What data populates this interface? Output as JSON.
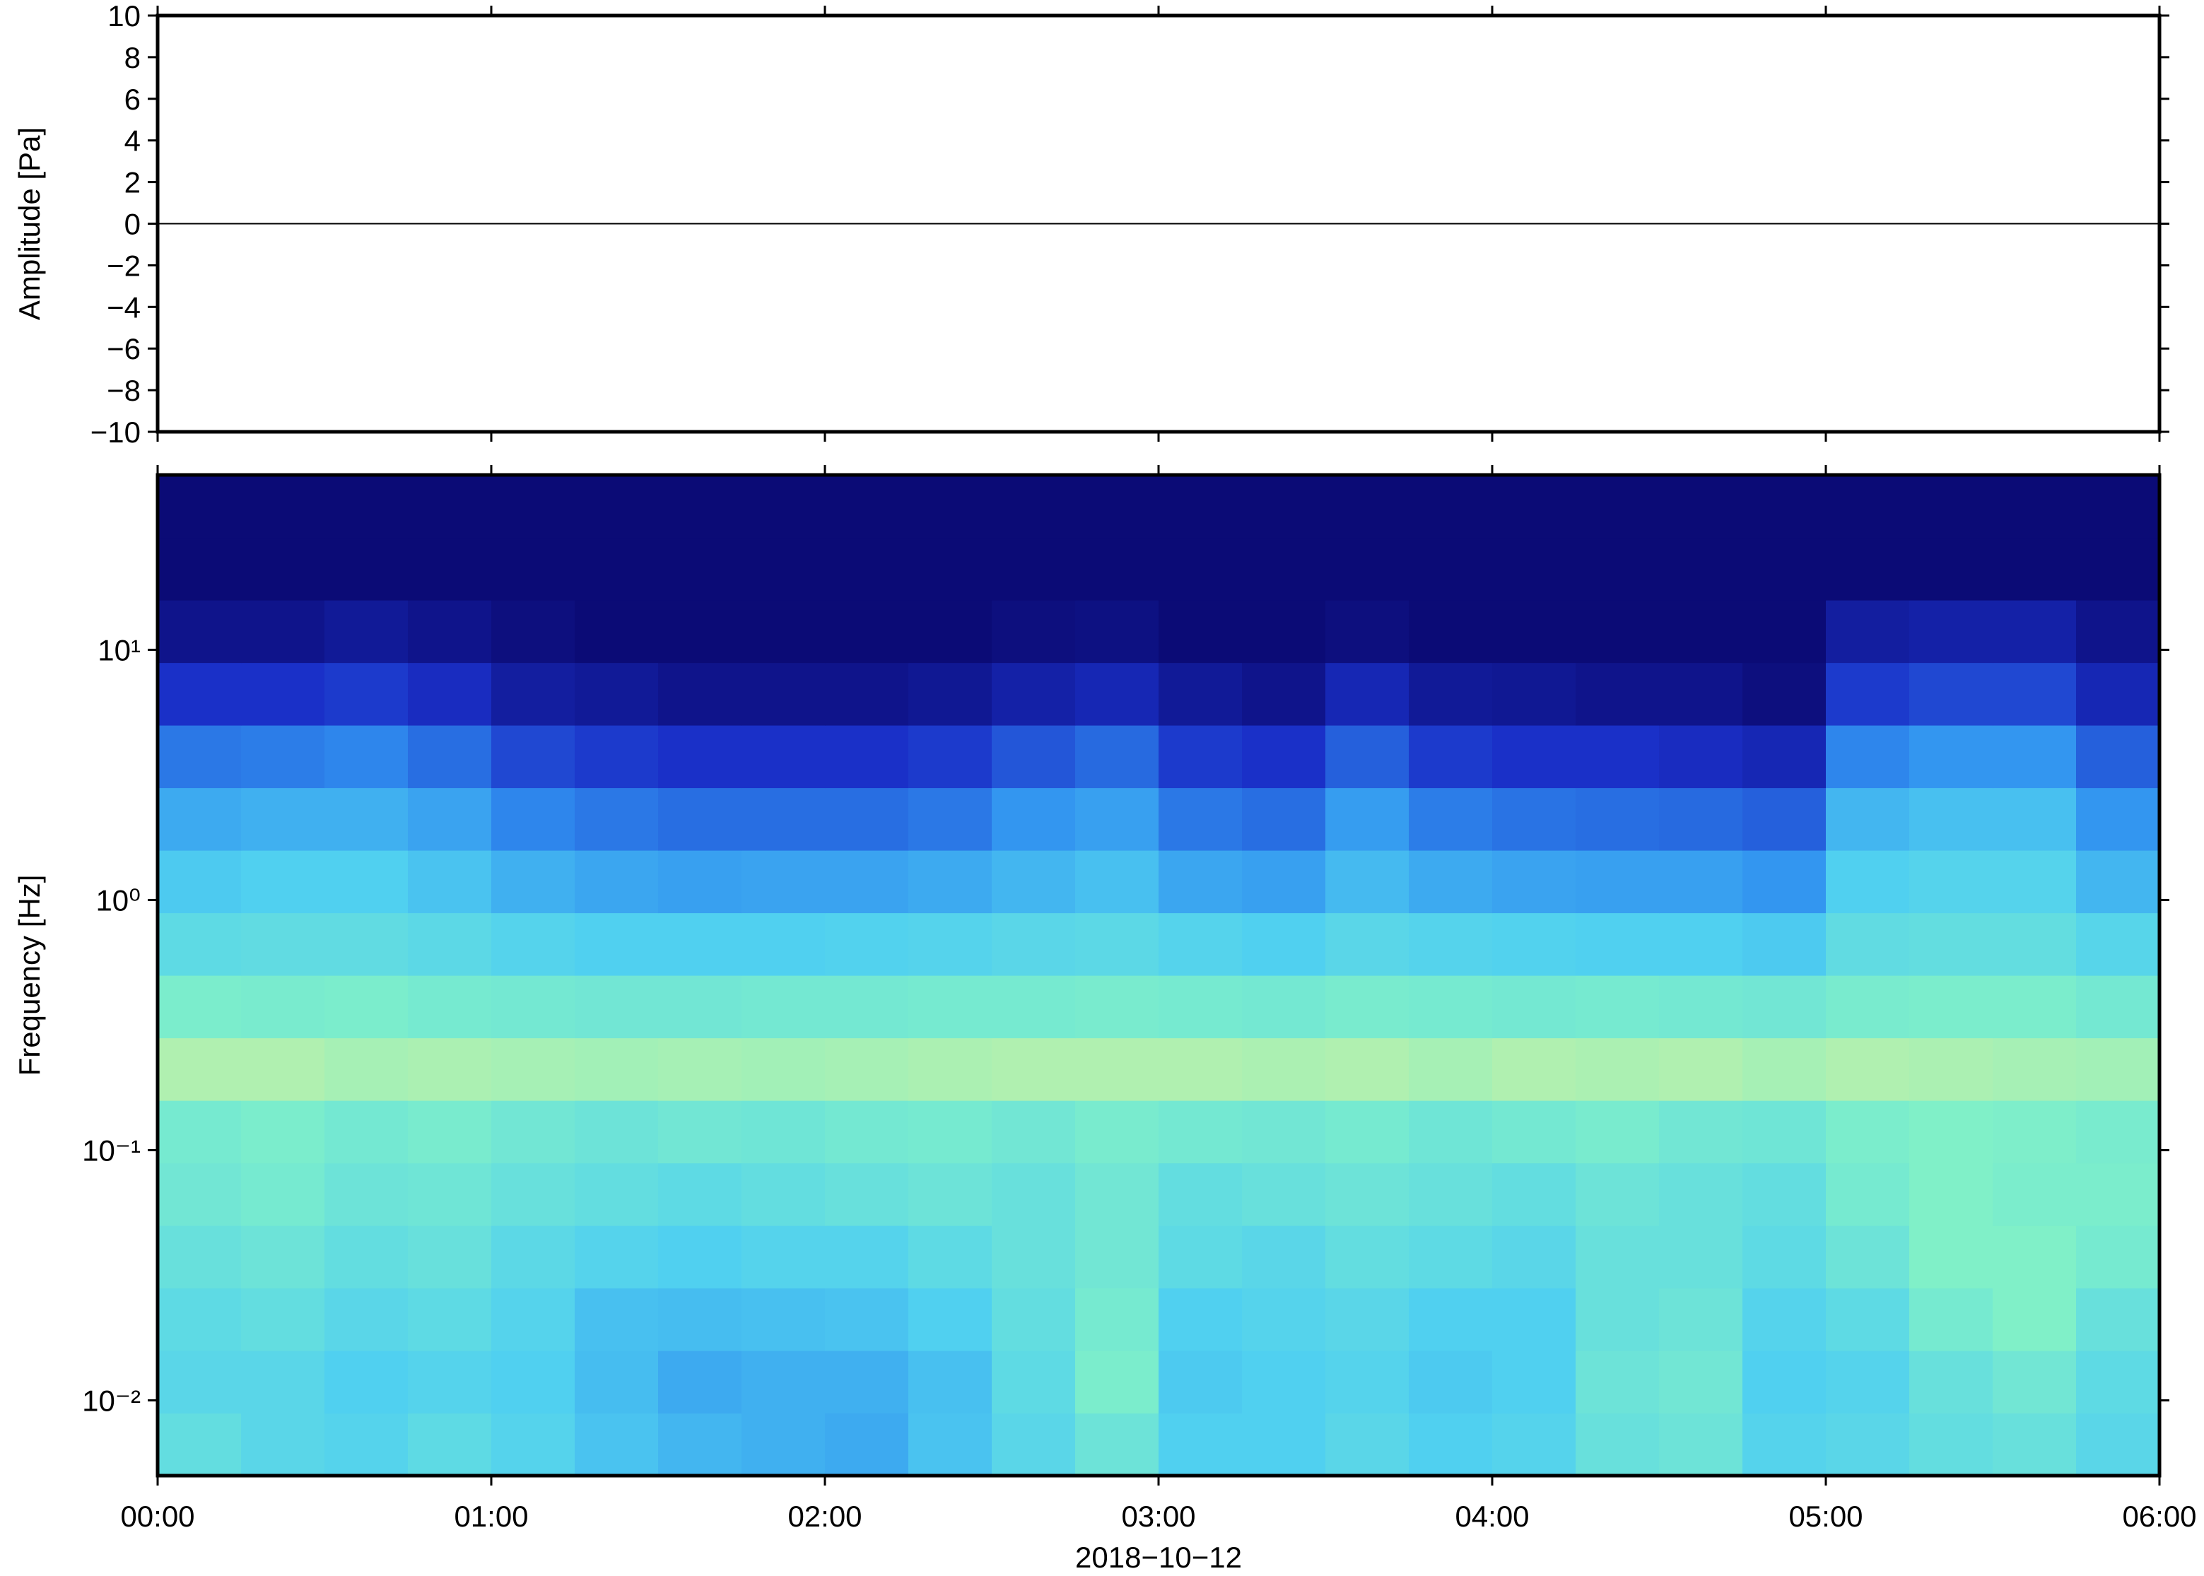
{
  "chart_data": [
    {
      "type": "line",
      "ylabel": "Amplitude [Pa]",
      "x": [
        0,
        1,
        2,
        3,
        4,
        5,
        6
      ],
      "values": [
        0,
        0,
        0,
        0,
        0,
        0,
        0
      ],
      "color": "#000000",
      "xlim": [
        0,
        6
      ],
      "xticks": [
        0,
        1,
        2,
        3,
        4,
        5,
        6
      ],
      "ylim": [
        -10,
        10
      ],
      "yticks": [
        {
          "value": -10,
          "label": "−10"
        },
        {
          "value": -8,
          "label": "−8"
        },
        {
          "value": -6,
          "label": "−6"
        },
        {
          "value": -4,
          "label": "−4"
        },
        {
          "value": -2,
          "label": "−2"
        },
        0,
        2,
        4,
        6,
        8,
        10
      ]
    },
    {
      "type": "heatmap",
      "ylabel": "Frequency [Hz]",
      "xlabel": "2018−10−12",
      "xlim": [
        0,
        6
      ],
      "xticks": [
        {
          "value": 0,
          "label": "00:00"
        },
        {
          "value": 1,
          "label": "01:00"
        },
        {
          "value": 2,
          "label": "02:00"
        },
        {
          "value": 3,
          "label": "03:00"
        },
        {
          "value": 4,
          "label": "04:00"
        },
        {
          "value": 5,
          "label": "05:00"
        },
        {
          "value": 6,
          "label": "06:00"
        }
      ],
      "ylim": [
        0.005,
        50
      ],
      "log_y": true,
      "yticks": [
        {
          "value": 0.01,
          "label": "10⁻²"
        },
        {
          "value": 0.1,
          "label": "10⁻¹"
        },
        {
          "value": 1,
          "label": "10⁰"
        },
        {
          "value": 10,
          "label": "10¹"
        }
      ],
      "colors": [
        "#0b0b76",
        "#1a30c8",
        "#3090f0",
        "#50d0f0",
        "#80f0c8",
        "#e0f098"
      ],
      "values": [
        [
          0.68,
          0.64,
          0.62,
          0.66,
          0.62,
          0.56,
          0.52,
          0.5,
          0.48,
          0.56,
          0.64,
          0.72,
          0.6,
          0.6,
          0.64,
          0.6,
          0.62,
          0.7,
          0.72,
          0.62,
          0.64,
          0.68,
          0.7,
          0.64
        ],
        [
          0.64,
          0.64,
          0.6,
          0.62,
          0.6,
          0.54,
          0.48,
          0.5,
          0.5,
          0.55,
          0.66,
          0.78,
          0.58,
          0.6,
          0.62,
          0.58,
          0.6,
          0.72,
          0.74,
          0.6,
          0.62,
          0.7,
          0.74,
          0.66
        ],
        [
          0.66,
          0.68,
          0.64,
          0.66,
          0.62,
          0.55,
          0.54,
          0.55,
          0.56,
          0.6,
          0.68,
          0.76,
          0.6,
          0.62,
          0.64,
          0.6,
          0.6,
          0.7,
          0.72,
          0.62,
          0.66,
          0.76,
          0.8,
          0.7
        ],
        [
          0.7,
          0.72,
          0.68,
          0.7,
          0.65,
          0.62,
          0.6,
          0.62,
          0.62,
          0.66,
          0.7,
          0.74,
          0.66,
          0.64,
          0.68,
          0.66,
          0.64,
          0.7,
          0.7,
          0.66,
          0.72,
          0.8,
          0.8,
          0.76
        ],
        [
          0.74,
          0.76,
          0.72,
          0.73,
          0.7,
          0.68,
          0.66,
          0.68,
          0.7,
          0.72,
          0.7,
          0.74,
          0.68,
          0.7,
          0.72,
          0.7,
          0.68,
          0.72,
          0.7,
          0.68,
          0.76,
          0.8,
          0.78,
          0.78
        ],
        [
          0.76,
          0.78,
          0.75,
          0.77,
          0.74,
          0.72,
          0.74,
          0.73,
          0.75,
          0.76,
          0.74,
          0.77,
          0.75,
          0.74,
          0.76,
          0.73,
          0.75,
          0.77,
          0.74,
          0.73,
          0.78,
          0.8,
          0.79,
          0.77
        ],
        [
          0.9,
          0.9,
          0.88,
          0.89,
          0.88,
          0.87,
          0.88,
          0.87,
          0.88,
          0.89,
          0.9,
          0.9,
          0.9,
          0.89,
          0.9,
          0.88,
          0.9,
          0.89,
          0.9,
          0.88,
          0.9,
          0.89,
          0.88,
          0.87
        ],
        [
          0.78,
          0.77,
          0.78,
          0.76,
          0.75,
          0.74,
          0.74,
          0.75,
          0.75,
          0.76,
          0.76,
          0.77,
          0.76,
          0.75,
          0.77,
          0.76,
          0.75,
          0.76,
          0.75,
          0.74,
          0.77,
          0.78,
          0.78,
          0.75
        ],
        [
          0.66,
          0.67,
          0.67,
          0.65,
          0.62,
          0.6,
          0.6,
          0.6,
          0.61,
          0.62,
          0.64,
          0.65,
          0.62,
          0.6,
          0.64,
          0.62,
          0.61,
          0.6,
          0.6,
          0.58,
          0.67,
          0.68,
          0.68,
          0.63
        ],
        [
          0.58,
          0.6,
          0.6,
          0.56,
          0.5,
          0.47,
          0.45,
          0.46,
          0.46,
          0.48,
          0.52,
          0.55,
          0.47,
          0.45,
          0.53,
          0.48,
          0.46,
          0.45,
          0.45,
          0.42,
          0.6,
          0.62,
          0.62,
          0.52
        ],
        [
          0.48,
          0.5,
          0.5,
          0.46,
          0.38,
          0.35,
          0.33,
          0.33,
          0.33,
          0.35,
          0.42,
          0.45,
          0.35,
          0.33,
          0.44,
          0.36,
          0.34,
          0.33,
          0.32,
          0.3,
          0.52,
          0.55,
          0.55,
          0.42
        ],
        [
          0.35,
          0.36,
          0.38,
          0.33,
          0.25,
          0.22,
          0.2,
          0.2,
          0.2,
          0.22,
          0.28,
          0.32,
          0.22,
          0.2,
          0.3,
          0.22,
          0.2,
          0.2,
          0.18,
          0.15,
          0.38,
          0.42,
          0.42,
          0.3
        ],
        [
          0.2,
          0.2,
          0.22,
          0.18,
          0.1,
          0.08,
          0.05,
          0.05,
          0.05,
          0.07,
          0.12,
          0.15,
          0.08,
          0.05,
          0.15,
          0.08,
          0.07,
          0.05,
          0.05,
          0.02,
          0.22,
          0.25,
          0.25,
          0.15
        ],
        [
          0.05,
          0.05,
          0.08,
          0.05,
          0.02,
          0,
          0,
          0,
          0,
          0,
          0.02,
          0.03,
          0,
          0,
          0.02,
          0,
          0,
          0,
          0,
          0,
          0.1,
          0.12,
          0.12,
          0.05
        ],
        [
          0,
          0,
          0,
          0,
          0,
          0,
          0,
          0,
          0,
          0,
          0,
          0,
          0,
          0,
          0,
          0,
          0,
          0,
          0,
          0,
          0,
          0,
          0,
          0
        ],
        [
          0,
          0,
          0,
          0,
          0,
          0,
          0,
          0,
          0,
          0,
          0,
          0,
          0,
          0,
          0,
          0,
          0,
          0,
          0,
          0,
          0,
          0,
          0,
          0
        ]
      ]
    }
  ]
}
